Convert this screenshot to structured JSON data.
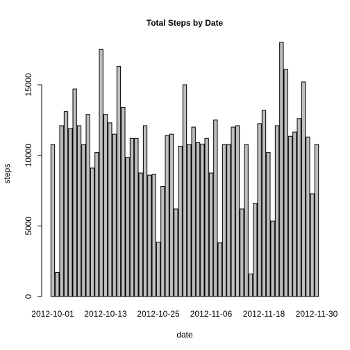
{
  "chart_data": {
    "type": "bar",
    "title": "Total Steps by Date",
    "xlabel": "date",
    "ylabel": "steps",
    "categories": [
      "2012-10-01",
      null,
      null,
      null,
      null,
      null,
      null,
      null,
      null,
      null,
      null,
      null,
      "2012-10-13",
      null,
      null,
      null,
      null,
      null,
      null,
      null,
      null,
      null,
      null,
      null,
      "2012-10-25",
      null,
      null,
      null,
      null,
      null,
      null,
      null,
      null,
      null,
      null,
      null,
      "2012-11-06",
      null,
      null,
      null,
      null,
      null,
      null,
      null,
      null,
      null,
      null,
      null,
      "2012-11-18",
      null,
      null,
      null,
      null,
      null,
      null,
      null,
      null,
      null,
      null,
      null,
      "2012-11-30"
    ],
    "values": [
      10766,
      1700,
      12100,
      13100,
      11900,
      14700,
      12100,
      10766,
      12900,
      9100,
      10200,
      17500,
      12900,
      12300,
      11500,
      16300,
      13400,
      9850,
      11200,
      11200,
      8750,
      12100,
      8600,
      8650,
      3850,
      7800,
      11400,
      11500,
      6200,
      10650,
      15000,
      10766,
      12000,
      10900,
      10800,
      11200,
      8750,
      12500,
      3800,
      10766,
      10766,
      12000,
      12100,
      6200,
      10766,
      1600,
      6600,
      12250,
      13200,
      10200,
      5350,
      12100,
      18000,
      16100,
      11350,
      11650,
      12600,
      15200,
      11300,
      7280,
      10766
    ],
    "color": "#bebebe",
    "ylim": [
      0,
      18100
    ],
    "yticks": [
      0,
      5000,
      10000,
      15000
    ],
    "grid": false
  }
}
